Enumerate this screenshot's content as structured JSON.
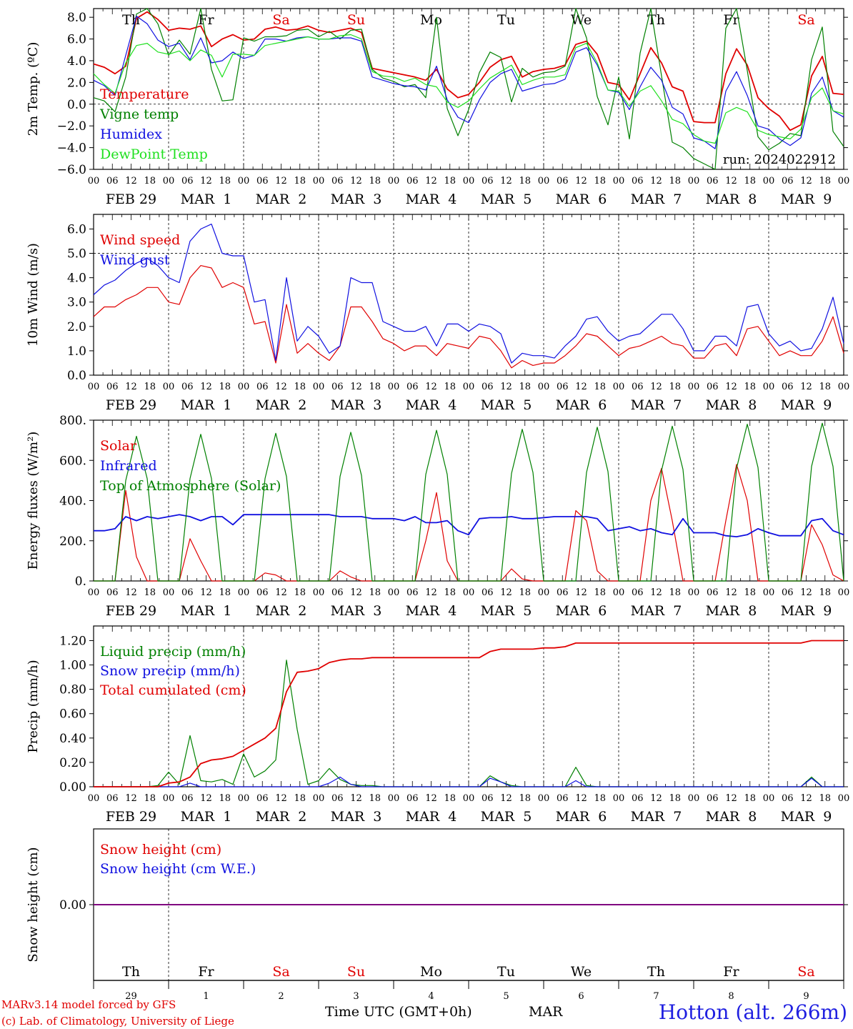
{
  "colors": {
    "red": "#e00000",
    "blue": "#1010e0",
    "darkgreen": "#008000",
    "lightgreen": "#20e020",
    "purple": "#800080",
    "black": "#000000"
  },
  "days": [
    "Th",
    "Fr",
    "Sa",
    "Su",
    "Mo",
    "Tu",
    "We",
    "Th",
    "Fr",
    "Sa"
  ],
  "weekend_days": [
    2,
    3,
    9
  ],
  "date_labels": [
    "FEB 29",
    "MAR  1",
    "MAR  2",
    "MAR  3",
    "MAR  4",
    "MAR  5",
    "MAR  6",
    "MAR  7",
    "MAR  8",
    "MAR  9"
  ],
  "hour_ticks": [
    "00",
    "06",
    "12",
    "18"
  ],
  "hour_end": "00",
  "bottom_day_numbers": [
    "29",
    "1",
    "2",
    "3",
    "4",
    "5",
    "6",
    "7",
    "8",
    "9"
  ],
  "bottom_month": "MAR",
  "footer": {
    "model": "MARv3.14 model forced by GFS",
    "lab": "(c) Lab. of Climatology, University of Liege",
    "axis_title": "Time UTC (GMT+0h)",
    "station": "Hotton (alt. 266m)"
  },
  "chart_data": [
    {
      "id": "temperature",
      "type": "line",
      "ylabel": "2m Temp. (ºC)",
      "ylim": [
        -6,
        8.8
      ],
      "yticks": [
        "8.0",
        "6.0",
        "4.0",
        "2.0",
        "0.0",
        "−2.0",
        "−4.0",
        "−6.0"
      ],
      "ytick_values": [
        8,
        6,
        4,
        2,
        0,
        -2,
        -4,
        -6
      ],
      "ref_line": 0,
      "annotation": "run: 2024022912",
      "x_hours_step": 6,
      "series": [
        {
          "name": "Temperature",
          "color": "#e00000",
          "values": [
            3.7,
            3.4,
            2.8,
            3.5,
            7.9,
            8.5,
            7.8,
            6.8,
            7.0,
            6.9,
            7.2,
            5.3,
            6.0,
            6.4,
            5.9,
            6.0,
            6.9,
            7.1,
            6.8,
            6.9,
            7.2,
            6.8,
            6.6,
            6.8,
            7.0,
            6.6,
            3.3,
            3.1,
            2.9,
            2.7,
            2.5,
            2.2,
            3.2,
            1.4,
            0.6,
            0.9,
            2.0,
            3.4,
            4.1,
            4.4,
            2.5,
            3.0,
            3.2,
            3.3,
            3.6,
            5.5,
            5.8,
            4.6,
            2.0,
            1.8,
            0.4,
            2.8,
            5.2,
            3.8,
            1.6,
            1.2,
            -1.6,
            -1.7,
            -1.7,
            2.8,
            5.1,
            3.6,
            0.6,
            -0.4,
            -1.1,
            -2.4,
            -1.9,
            2.6,
            4.4,
            1.0,
            0.9
          ]
        },
        {
          "name": "Vigne temp",
          "color": "#008000",
          "values": [
            0.6,
            0.3,
            -0.7,
            2.5,
            8.3,
            9.2,
            7.4,
            4.5,
            5.9,
            4.6,
            9.6,
            3.2,
            0.3,
            0.4,
            6.1,
            5.8,
            6.2,
            6.2,
            6.3,
            6.8,
            6.9,
            6.2,
            6.7,
            6.0,
            6.8,
            6.9,
            3.2,
            2.4,
            2.1,
            1.6,
            1.8,
            0.6,
            8.0,
            -0.4,
            -2.9,
            -0.5,
            2.9,
            4.8,
            4.3,
            0.2,
            3.3,
            2.5,
            2.9,
            3.0,
            3.5,
            9.1,
            6.1,
            0.7,
            -1.9,
            2.5,
            -3.2,
            4.7,
            10.0,
            2.6,
            -3.5,
            -4.0,
            -5.0,
            -5.5,
            -6.0,
            7.0,
            9.8,
            3.1,
            -3.0,
            -4.2,
            -3.6,
            -2.7,
            -2.9,
            4.1,
            7.1,
            -2.5,
            -3.9
          ]
        },
        {
          "name": "Humidex",
          "color": "#1010e0",
          "values": [
            2.2,
            1.7,
            0.8,
            4.5,
            8.1,
            7.4,
            5.9,
            5.3,
            5.6,
            4.1,
            6.1,
            3.8,
            4.0,
            4.8,
            4.2,
            4.5,
            6.0,
            6.0,
            5.8,
            6.1,
            6.2,
            6.0,
            6.0,
            6.1,
            6.1,
            5.8,
            2.5,
            2.2,
            1.9,
            1.7,
            1.6,
            1.3,
            3.5,
            0.4,
            -1.2,
            -1.7,
            0.4,
            2.0,
            2.8,
            3.2,
            1.2,
            1.5,
            1.8,
            1.9,
            2.3,
            4.8,
            5.2,
            3.6,
            1.3,
            1.1,
            -0.5,
            1.6,
            3.4,
            2.2,
            -0.3,
            -0.9,
            -3.1,
            -3.4,
            -4.1,
            1.2,
            3.0,
            0.8,
            -2.0,
            -2.3,
            -3.2,
            -3.8,
            -3.1,
            1.0,
            2.5,
            -0.6,
            -1.2
          ]
        },
        {
          "name": "DewPoint Temp",
          "color": "#20e020",
          "values": [
            2.8,
            1.8,
            1.0,
            3.8,
            5.4,
            5.6,
            4.8,
            4.6,
            4.9,
            4.0,
            5.0,
            4.5,
            2.5,
            4.6,
            4.6,
            4.5,
            5.4,
            5.6,
            5.8,
            6.0,
            6.2,
            6.0,
            6.0,
            6.3,
            6.4,
            6.0,
            3.0,
            2.6,
            2.5,
            2.1,
            2.4,
            1.8,
            1.6,
            0.2,
            -0.3,
            0.3,
            1.4,
            2.4,
            3.0,
            3.6,
            1.8,
            2.2,
            2.5,
            2.5,
            2.7,
            5.2,
            5.6,
            3.8,
            1.3,
            1.2,
            -0.2,
            1.2,
            1.7,
            0.3,
            -1.4,
            -1.8,
            -2.8,
            -3.4,
            -3.6,
            -0.8,
            -0.3,
            -0.7,
            -2.4,
            -2.8,
            -3.0,
            -3.2,
            -2.3,
            0.6,
            1.5,
            -0.6,
            -0.9
          ]
        }
      ]
    },
    {
      "id": "wind",
      "type": "line",
      "ylabel": "10m Wind (m/s)",
      "ylim": [
        0,
        6.6
      ],
      "yticks": [
        "6.0",
        "5.0",
        "4.0",
        "3.0",
        "2.0",
        "1.0",
        "0.0"
      ],
      "ytick_values": [
        6,
        5,
        4,
        3,
        2,
        1,
        0
      ],
      "ref_line": 5,
      "x_hours_step": 6,
      "series": [
        {
          "name": "Wind speed",
          "color": "#e00000",
          "values": [
            2.4,
            2.8,
            2.8,
            3.1,
            3.3,
            3.6,
            3.6,
            3.0,
            2.9,
            4.0,
            4.5,
            4.4,
            3.6,
            3.8,
            3.6,
            2.1,
            2.2,
            0.5,
            2.9,
            0.9,
            1.3,
            0.9,
            0.6,
            1.2,
            2.8,
            2.8,
            2.2,
            1.5,
            1.3,
            1.0,
            1.2,
            1.2,
            0.8,
            1.3,
            1.2,
            1.1,
            1.6,
            1.5,
            1.0,
            0.3,
            0.6,
            0.4,
            0.5,
            0.5,
            0.8,
            1.2,
            1.7,
            1.6,
            1.2,
            0.8,
            1.1,
            1.2,
            1.4,
            1.6,
            1.3,
            1.2,
            0.7,
            0.7,
            1.2,
            1.3,
            0.8,
            1.9,
            2.0,
            1.4,
            0.8,
            1.0,
            0.8,
            0.8,
            1.4,
            2.4,
            0.9
          ]
        },
        {
          "name": "Wind gust",
          "color": "#1010e0",
          "values": [
            3.3,
            3.7,
            3.9,
            4.3,
            4.6,
            4.8,
            4.5,
            4.0,
            3.8,
            5.5,
            6.0,
            6.2,
            5.0,
            4.9,
            4.9,
            3.0,
            3.1,
            0.6,
            4.0,
            1.4,
            2.0,
            1.6,
            0.9,
            1.2,
            4.0,
            3.8,
            3.8,
            2.2,
            2.0,
            1.8,
            1.8,
            2.0,
            1.2,
            2.1,
            2.1,
            1.8,
            2.1,
            2.0,
            1.7,
            0.5,
            0.9,
            0.8,
            0.8,
            0.7,
            1.2,
            1.6,
            2.3,
            2.4,
            1.8,
            1.4,
            1.6,
            1.7,
            2.1,
            2.5,
            2.5,
            1.9,
            1.0,
            1.0,
            1.6,
            1.6,
            1.2,
            2.8,
            2.9,
            1.7,
            1.2,
            1.4,
            1.0,
            1.1,
            1.9,
            3.2,
            1.3
          ]
        }
      ]
    },
    {
      "id": "energy",
      "type": "line",
      "ylabel": "Energy fluxes (W/m²)",
      "ylim": [
        0,
        800
      ],
      "yticks": [
        "800.",
        "600.",
        "400.",
        "200.",
        "0."
      ],
      "ytick_values": [
        800,
        600,
        400,
        200,
        0
      ],
      "x_hours_step": 6,
      "series": [
        {
          "name": "Solar",
          "color": "#e00000",
          "values": [
            0,
            0,
            0,
            450,
            120,
            0,
            0,
            0,
            0,
            210,
            100,
            0,
            0,
            0,
            0,
            0,
            40,
            30,
            0,
            0,
            0,
            0,
            0,
            50,
            20,
            0,
            0,
            0,
            0,
            0,
            0,
            200,
            440,
            100,
            0,
            0,
            0,
            0,
            0,
            60,
            10,
            0,
            0,
            0,
            0,
            350,
            300,
            50,
            0,
            0,
            0,
            0,
            400,
            560,
            300,
            0,
            0,
            0,
            0,
            300,
            580,
            400,
            0,
            0,
            0,
            0,
            0,
            280,
            180,
            30,
            0
          ]
        },
        {
          "name": "Infrared",
          "color": "#1010e0",
          "values": [
            250,
            250,
            260,
            320,
            300,
            320,
            310,
            320,
            330,
            320,
            300,
            320,
            320,
            280,
            330,
            330,
            330,
            330,
            330,
            330,
            330,
            330,
            330,
            320,
            320,
            320,
            310,
            310,
            310,
            300,
            320,
            290,
            290,
            300,
            250,
            230,
            310,
            315,
            315,
            320,
            310,
            310,
            315,
            320,
            320,
            320,
            320,
            310,
            250,
            260,
            270,
            250,
            260,
            240,
            230,
            310,
            240,
            240,
            240,
            225,
            220,
            230,
            260,
            240,
            225,
            225,
            225,
            300,
            310,
            250,
            230
          ]
        },
        {
          "name": "Top of Atmosphere (Solar)",
          "color": "#008000",
          "values": [
            0,
            0,
            0,
            500,
            720,
            510,
            0,
            0,
            0,
            510,
            730,
            510,
            0,
            0,
            0,
            0,
            510,
            735,
            520,
            0,
            0,
            0,
            0,
            520,
            740,
            525,
            0,
            0,
            0,
            0,
            0,
            530,
            750,
            530,
            0,
            0,
            0,
            0,
            0,
            535,
            755,
            540,
            0,
            0,
            0,
            0,
            540,
            765,
            545,
            0,
            0,
            0,
            0,
            550,
            770,
            555,
            0,
            0,
            0,
            0,
            560,
            780,
            565,
            0,
            0,
            0,
            0,
            570,
            785,
            570,
            0
          ]
        }
      ]
    },
    {
      "id": "precip",
      "type": "line",
      "ylabel": "Precip (mm/h)",
      "ylim": [
        0,
        1.32
      ],
      "yticks": [
        "1.20",
        "1.00",
        "0.80",
        "0.60",
        "0.40",
        "0.20",
        "0.00"
      ],
      "ytick_values": [
        1.2,
        1.0,
        0.8,
        0.6,
        0.4,
        0.2,
        0.0
      ],
      "x_hours_step": 6,
      "series": [
        {
          "name": "Liquid precip (mm/h)",
          "color": "#008000",
          "values": [
            0,
            0,
            0,
            0,
            0,
            0,
            0.01,
            0.12,
            0.02,
            0.42,
            0.05,
            0.04,
            0.06,
            0.02,
            0.27,
            0.08,
            0.13,
            0.22,
            1.04,
            0.47,
            0.02,
            0.05,
            0.15,
            0.06,
            0.02,
            0.01,
            0.01,
            0,
            0,
            0,
            0,
            0,
            0,
            0,
            0,
            0,
            0,
            0.09,
            0.04,
            0.01,
            0,
            0,
            0,
            0,
            0,
            0.16,
            0.01,
            0,
            0,
            0,
            0,
            0,
            0,
            0,
            0,
            0,
            0,
            0,
            0,
            0,
            0,
            0,
            0,
            0,
            0,
            0,
            0,
            0.08,
            0,
            0,
            0
          ]
        },
        {
          "name": "Snow precip (mm/h)",
          "color": "#1010e0",
          "values": [
            0,
            0,
            0,
            0,
            0,
            0,
            0,
            0,
            0,
            0.03,
            0,
            0,
            0,
            0,
            0,
            0,
            0,
            0,
            0,
            0,
            0,
            0,
            0.03,
            0.08,
            0.02,
            0,
            0,
            0,
            0,
            0,
            0,
            0,
            0,
            0,
            0,
            0,
            0,
            0.07,
            0.04,
            0,
            0,
            0,
            0,
            0,
            0,
            0.05,
            0,
            0,
            0,
            0,
            0,
            0,
            0,
            0,
            0,
            0,
            0,
            0,
            0,
            0,
            0,
            0,
            0,
            0,
            0,
            0,
            0,
            0.07,
            0,
            0,
            0
          ]
        },
        {
          "name": "Total cumulated (cm)",
          "color": "#e00000",
          "values": [
            0,
            0,
            0,
            0,
            0,
            0,
            0,
            0.03,
            0.04,
            0.08,
            0.19,
            0.22,
            0.23,
            0.25,
            0.3,
            0.35,
            0.4,
            0.48,
            0.78,
            0.94,
            0.95,
            0.97,
            1.02,
            1.04,
            1.05,
            1.05,
            1.06,
            1.06,
            1.06,
            1.06,
            1.06,
            1.06,
            1.06,
            1.06,
            1.06,
            1.06,
            1.06,
            1.11,
            1.13,
            1.13,
            1.13,
            1.13,
            1.14,
            1.14,
            1.15,
            1.18,
            1.18,
            1.18,
            1.18,
            1.18,
            1.18,
            1.18,
            1.18,
            1.18,
            1.18,
            1.18,
            1.18,
            1.18,
            1.18,
            1.18,
            1.18,
            1.18,
            1.18,
            1.18,
            1.18,
            1.18,
            1.18,
            1.2,
            1.2,
            1.2,
            1.2
          ]
        }
      ]
    },
    {
      "id": "snow",
      "type": "line",
      "ylabel": "Snow height (cm)",
      "ylim": [
        -1,
        1
      ],
      "yticks": [
        "0.00"
      ],
      "ytick_values": [
        0
      ],
      "x_hours_step": 6,
      "series": [
        {
          "name": "Snow height (cm)",
          "color": "#e00000",
          "values": [
            0,
            0
          ]
        },
        {
          "name": "Snow height (cm W.E.)",
          "color": "#1010e0",
          "values": [
            0,
            0
          ]
        }
      ],
      "line_color": "#800080"
    }
  ]
}
